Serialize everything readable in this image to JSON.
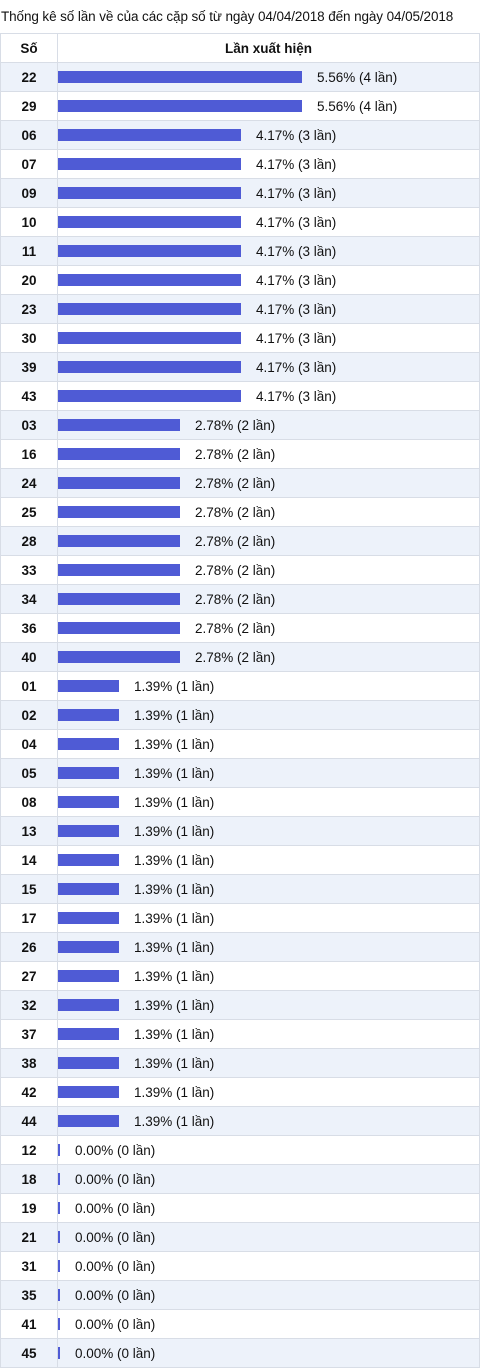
{
  "title": "Thống kê số lần về của các cặp số từ ngày 04/04/2018 đến ngày 04/05/2018",
  "colors": {
    "bar": "#4f5bd5",
    "row_alt": "#edf2fa",
    "border": "#d8dde6"
  },
  "chart_data": {
    "type": "bar",
    "orientation": "horizontal",
    "title": "Thống kê số lần về của các cặp số từ ngày 04/04/2018 đến ngày 04/05/2018",
    "header_number": "Số",
    "header_value": "Lần xuất hiện",
    "rows": [
      {
        "number": "22",
        "percent": 5.56,
        "count": 4,
        "label": "5.56% (4 lần)"
      },
      {
        "number": "29",
        "percent": 5.56,
        "count": 4,
        "label": "5.56% (4 lần)"
      },
      {
        "number": "06",
        "percent": 4.17,
        "count": 3,
        "label": "4.17% (3 lần)"
      },
      {
        "number": "07",
        "percent": 4.17,
        "count": 3,
        "label": "4.17% (3 lần)"
      },
      {
        "number": "09",
        "percent": 4.17,
        "count": 3,
        "label": "4.17% (3 lần)"
      },
      {
        "number": "10",
        "percent": 4.17,
        "count": 3,
        "label": "4.17% (3 lần)"
      },
      {
        "number": "11",
        "percent": 4.17,
        "count": 3,
        "label": "4.17% (3 lần)"
      },
      {
        "number": "20",
        "percent": 4.17,
        "count": 3,
        "label": "4.17% (3 lần)"
      },
      {
        "number": "23",
        "percent": 4.17,
        "count": 3,
        "label": "4.17% (3 lần)"
      },
      {
        "number": "30",
        "percent": 4.17,
        "count": 3,
        "label": "4.17% (3 lần)"
      },
      {
        "number": "39",
        "percent": 4.17,
        "count": 3,
        "label": "4.17% (3 lần)"
      },
      {
        "number": "43",
        "percent": 4.17,
        "count": 3,
        "label": "4.17% (3 lần)"
      },
      {
        "number": "03",
        "percent": 2.78,
        "count": 2,
        "label": "2.78% (2 lần)"
      },
      {
        "number": "16",
        "percent": 2.78,
        "count": 2,
        "label": "2.78% (2 lần)"
      },
      {
        "number": "24",
        "percent": 2.78,
        "count": 2,
        "label": "2.78% (2 lần)"
      },
      {
        "number": "25",
        "percent": 2.78,
        "count": 2,
        "label": "2.78% (2 lần)"
      },
      {
        "number": "28",
        "percent": 2.78,
        "count": 2,
        "label": "2.78% (2 lần)"
      },
      {
        "number": "33",
        "percent": 2.78,
        "count": 2,
        "label": "2.78% (2 lần)"
      },
      {
        "number": "34",
        "percent": 2.78,
        "count": 2,
        "label": "2.78% (2 lần)"
      },
      {
        "number": "36",
        "percent": 2.78,
        "count": 2,
        "label": "2.78% (2 lần)"
      },
      {
        "number": "40",
        "percent": 2.78,
        "count": 2,
        "label": "2.78% (2 lần)"
      },
      {
        "number": "01",
        "percent": 1.39,
        "count": 1,
        "label": "1.39% (1 lần)"
      },
      {
        "number": "02",
        "percent": 1.39,
        "count": 1,
        "label": "1.39% (1 lần)"
      },
      {
        "number": "04",
        "percent": 1.39,
        "count": 1,
        "label": "1.39% (1 lần)"
      },
      {
        "number": "05",
        "percent": 1.39,
        "count": 1,
        "label": "1.39% (1 lần)"
      },
      {
        "number": "08",
        "percent": 1.39,
        "count": 1,
        "label": "1.39% (1 lần)"
      },
      {
        "number": "13",
        "percent": 1.39,
        "count": 1,
        "label": "1.39% (1 lần)"
      },
      {
        "number": "14",
        "percent": 1.39,
        "count": 1,
        "label": "1.39% (1 lần)"
      },
      {
        "number": "15",
        "percent": 1.39,
        "count": 1,
        "label": "1.39% (1 lần)"
      },
      {
        "number": "17",
        "percent": 1.39,
        "count": 1,
        "label": "1.39% (1 lần)"
      },
      {
        "number": "26",
        "percent": 1.39,
        "count": 1,
        "label": "1.39% (1 lần)"
      },
      {
        "number": "27",
        "percent": 1.39,
        "count": 1,
        "label": "1.39% (1 lần)"
      },
      {
        "number": "32",
        "percent": 1.39,
        "count": 1,
        "label": "1.39% (1 lần)"
      },
      {
        "number": "37",
        "percent": 1.39,
        "count": 1,
        "label": "1.39% (1 lần)"
      },
      {
        "number": "38",
        "percent": 1.39,
        "count": 1,
        "label": "1.39% (1 lần)"
      },
      {
        "number": "42",
        "percent": 1.39,
        "count": 1,
        "label": "1.39% (1 lần)"
      },
      {
        "number": "44",
        "percent": 1.39,
        "count": 1,
        "label": "1.39% (1 lần)"
      },
      {
        "number": "12",
        "percent": 0.0,
        "count": 0,
        "label": "0.00% (0 lần)"
      },
      {
        "number": "18",
        "percent": 0.0,
        "count": 0,
        "label": "0.00% (0 lần)"
      },
      {
        "number": "19",
        "percent": 0.0,
        "count": 0,
        "label": "0.00% (0 lần)"
      },
      {
        "number": "21",
        "percent": 0.0,
        "count": 0,
        "label": "0.00% (0 lần)"
      },
      {
        "number": "31",
        "percent": 0.0,
        "count": 0,
        "label": "0.00% (0 lần)"
      },
      {
        "number": "35",
        "percent": 0.0,
        "count": 0,
        "label": "0.00% (0 lần)"
      },
      {
        "number": "41",
        "percent": 0.0,
        "count": 0,
        "label": "0.00% (0 lần)"
      },
      {
        "number": "45",
        "percent": 0.0,
        "count": 0,
        "label": "0.00% (0 lần)"
      }
    ]
  }
}
